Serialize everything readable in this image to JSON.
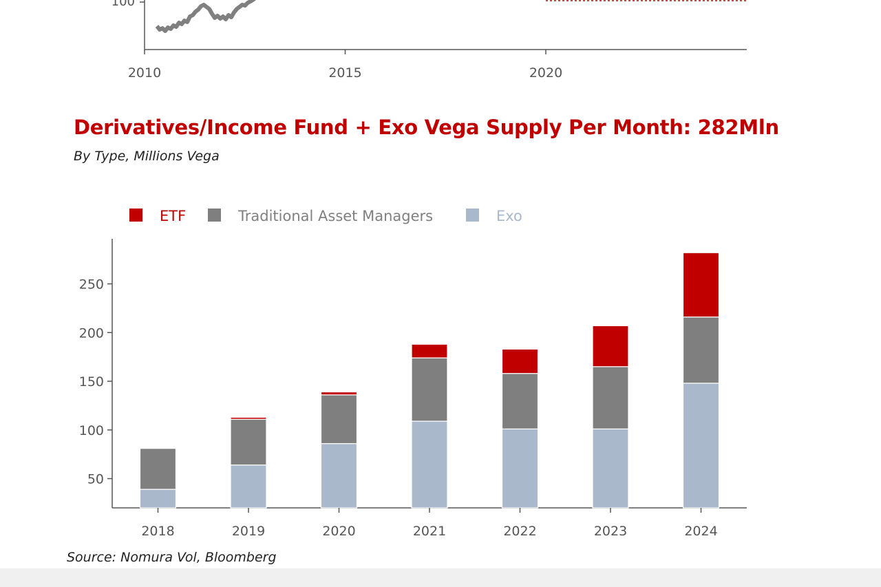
{
  "top_chart": {
    "x_ticks": [
      "2010",
      "2015",
      "2020"
    ],
    "y_tick_partial": "100",
    "series_color": "#808080",
    "reference_color": "#c00000"
  },
  "chart_data": {
    "type": "bar",
    "stacked": true,
    "title": "Derivatives/Income Fund + Exo Vega Supply Per Month: 282Mln",
    "subtitle": "By Type, Millions Vega",
    "categories": [
      "2018",
      "2019",
      "2020",
      "2021",
      "2022",
      "2023",
      "2024"
    ],
    "series": [
      {
        "name": "Exo",
        "color": "#aab8cb",
        "values": [
          39,
          64,
          86,
          109,
          101,
          101,
          148
        ]
      },
      {
        "name": "Traditional Asset Managers",
        "color": "#7f7f7f",
        "values": [
          42,
          47,
          50,
          65,
          57,
          64,
          68
        ]
      },
      {
        "name": "ETF",
        "color": "#c00000",
        "values": [
          0,
          2,
          3,
          14,
          25,
          42,
          66
        ]
      }
    ],
    "legend": [
      {
        "label": "ETF",
        "color": "#c00000",
        "text_color": "#c00000"
      },
      {
        "label": "Traditional Asset Managers",
        "color": "#7f7f7f",
        "text_color": "#808080"
      },
      {
        "label": "Exo",
        "color": "#aab8cb",
        "text_color": "#aab8cb"
      }
    ],
    "y_ticks": [
      50,
      100,
      150,
      200,
      250
    ],
    "ylim": [
      20,
      290
    ],
    "xlabel": "",
    "ylabel": "",
    "legend_position": "top-left",
    "grid": false
  },
  "footer": {
    "source": "Source: Nomura Vol, Bloomberg"
  }
}
